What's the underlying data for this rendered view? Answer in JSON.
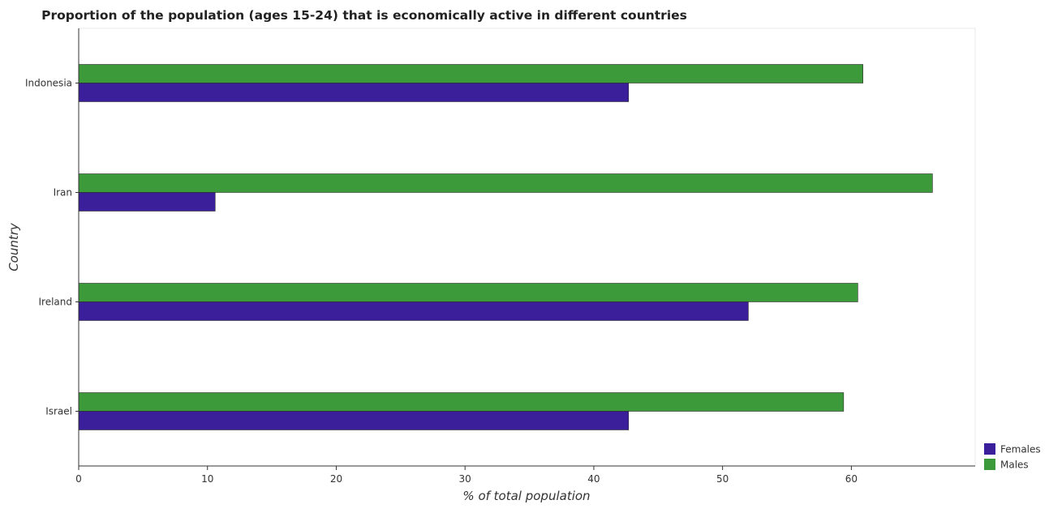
{
  "chart_data": {
    "type": "bar",
    "orientation": "horizontal",
    "title": "Proportion of the population (ages 15-24) that is economically active in different countries",
    "xlabel": "% of total population",
    "ylabel": "Country",
    "categories": [
      "Indonesia",
      "Iran",
      "Ireland",
      "Israel"
    ],
    "series": [
      {
        "name": "Females",
        "values": [
          42.7,
          10.6,
          52.0,
          42.7
        ],
        "color": "#3b1f9a"
      },
      {
        "name": "Males",
        "values": [
          60.9,
          66.3,
          60.5,
          59.4
        ],
        "color": "#3d9a3b"
      }
    ],
    "xlim": [
      0,
      69.615
    ],
    "xticks": [
      0,
      10,
      20,
      30,
      40,
      50,
      60
    ],
    "xtick_labels": [
      "0",
      "10",
      "20",
      "30",
      "40",
      "50",
      "60"
    ],
    "grid": false,
    "legend_position": "bottom-right"
  }
}
